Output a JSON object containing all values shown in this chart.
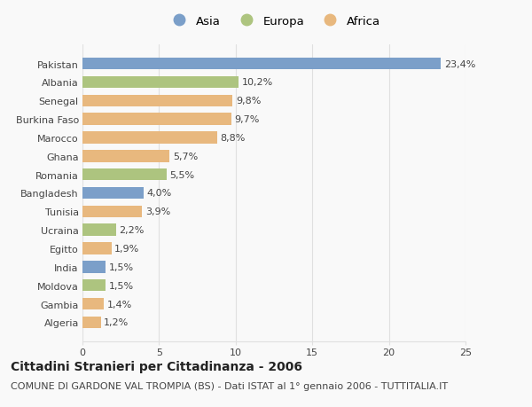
{
  "categories": [
    "Pakistan",
    "Albania",
    "Senegal",
    "Burkina Faso",
    "Marocco",
    "Ghana",
    "Romania",
    "Bangladesh",
    "Tunisia",
    "Ucraina",
    "Egitto",
    "India",
    "Moldova",
    "Gambia",
    "Algeria"
  ],
  "values": [
    23.4,
    10.2,
    9.8,
    9.7,
    8.8,
    5.7,
    5.5,
    4.0,
    3.9,
    2.2,
    1.9,
    1.5,
    1.5,
    1.4,
    1.2
  ],
  "labels": [
    "23,4%",
    "10,2%",
    "9,8%",
    "9,7%",
    "8,8%",
    "5,7%",
    "5,5%",
    "4,0%",
    "3,9%",
    "2,2%",
    "1,9%",
    "1,5%",
    "1,5%",
    "1,4%",
    "1,2%"
  ],
  "continents": [
    "Asia",
    "Europa",
    "Africa",
    "Africa",
    "Africa",
    "Africa",
    "Europa",
    "Asia",
    "Africa",
    "Europa",
    "Africa",
    "Asia",
    "Europa",
    "Africa",
    "Africa"
  ],
  "colors": {
    "Asia": "#7b9fc9",
    "Europa": "#adc47f",
    "Africa": "#e8b87e"
  },
  "xlim": [
    0,
    25
  ],
  "xticks": [
    0,
    5,
    10,
    15,
    20,
    25
  ],
  "title": "Cittadini Stranieri per Cittadinanza - 2006",
  "subtitle": "COMUNE DI GARDONE VAL TROMPIA (BS) - Dati ISTAT al 1° gennaio 2006 - TUTTITALIA.IT",
  "background_color": "#f9f9f9",
  "grid_color": "#e0e0e0",
  "text_color": "#444444",
  "title_fontsize": 10,
  "subtitle_fontsize": 8,
  "label_fontsize": 8,
  "tick_fontsize": 8,
  "legend_fontsize": 9.5
}
